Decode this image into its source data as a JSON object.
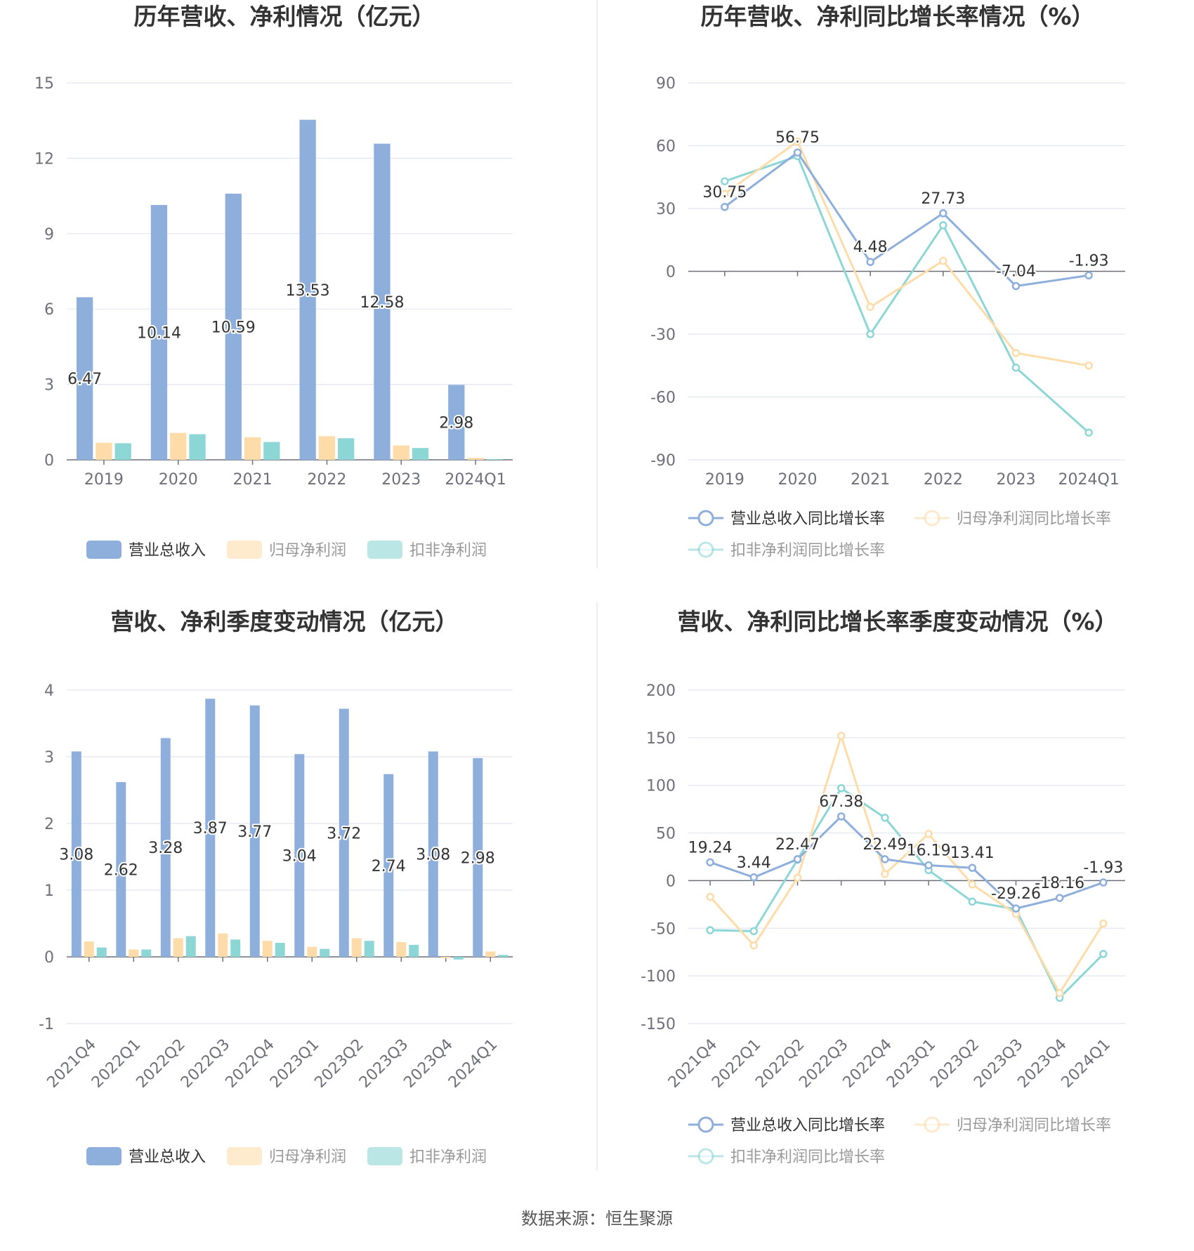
{
  "source_note": "数据来源：恒生聚源",
  "colors": {
    "revenue": "#8eaedb",
    "net_profit": "#fddcaa",
    "deducted_profit": "#8dd6d6",
    "axis": "#6e7079",
    "grid": "#e0e6f1",
    "divider": "#e8e8e8"
  },
  "chart_data": [
    {
      "id": "annual-amount",
      "type": "bar",
      "title": "历年营收、净利情况（亿元）",
      "categories": [
        "2019",
        "2020",
        "2021",
        "2022",
        "2023",
        "2024Q1"
      ],
      "series": [
        {
          "name": "营业总收入",
          "values": [
            6.47,
            10.14,
            10.59,
            13.53,
            12.58,
            2.98
          ],
          "labels": [
            "6.47",
            "10.14",
            "10.59",
            "13.53",
            "12.58",
            "2.98"
          ]
        },
        {
          "name": "归母净利润",
          "values": [
            0.68,
            1.07,
            0.9,
            0.94,
            0.57,
            0.08
          ]
        },
        {
          "name": "扣非净利润",
          "values": [
            0.66,
            1.02,
            0.71,
            0.86,
            0.47,
            0.03
          ]
        }
      ],
      "yticks": [
        "15",
        "12",
        "9",
        "6",
        "3",
        "0"
      ],
      "ylim": [
        0,
        15
      ],
      "xlabel": "",
      "ylabel": "",
      "grid": true,
      "legend": "bottom"
    },
    {
      "id": "annual-growth",
      "type": "line",
      "title": "历年营收、净利同比增长率情况（%）",
      "categories": [
        "2019",
        "2020",
        "2021",
        "2022",
        "2023",
        "2024Q1"
      ],
      "series": [
        {
          "name": "营业总收入同比增长率",
          "values": [
            30.75,
            56.75,
            4.48,
            27.73,
            -7.04,
            -1.93
          ],
          "labels": [
            "30.75",
            "56.75",
            "4.48",
            "27.73",
            "-7.04",
            "-1.93"
          ]
        },
        {
          "name": "归母净利润同比增长率",
          "values": [
            37,
            62,
            -17,
            5,
            -39,
            -45
          ]
        },
        {
          "name": "扣非净利润同比增长率",
          "values": [
            43,
            55,
            -30,
            22,
            -46,
            -77
          ]
        }
      ],
      "yticks": [
        "90",
        "60",
        "30",
        "0",
        "-30",
        "-60",
        "-90"
      ],
      "ylim": [
        -90,
        90
      ],
      "xlabel": "",
      "ylabel": "",
      "grid": true,
      "legend": "bottom"
    },
    {
      "id": "quarterly-amount",
      "type": "bar",
      "title": "营收、净利季度变动情况（亿元）",
      "categories": [
        "2021Q4",
        "2022Q1",
        "2022Q2",
        "2022Q3",
        "2022Q4",
        "2023Q1",
        "2023Q2",
        "2023Q3",
        "2023Q4",
        "2024Q1"
      ],
      "series": [
        {
          "name": "营业总收入",
          "values": [
            3.08,
            2.62,
            3.28,
            3.87,
            3.77,
            3.04,
            3.72,
            2.74,
            3.08,
            2.98
          ],
          "labels": [
            "3.08",
            "2.62",
            "3.28",
            "3.87",
            "3.77",
            "3.04",
            "3.72",
            "2.74",
            "3.08",
            "2.98"
          ]
        },
        {
          "name": "归母净利润",
          "values": [
            0.23,
            0.11,
            0.28,
            0.35,
            0.24,
            0.15,
            0.28,
            0.22,
            -0.02,
            0.08
          ]
        },
        {
          "name": "扣非净利润",
          "values": [
            0.14,
            0.11,
            0.31,
            0.26,
            0.21,
            0.12,
            0.24,
            0.18,
            -0.04,
            0.03
          ]
        }
      ],
      "yticks": [
        "4",
        "3",
        "2",
        "1",
        "0",
        "-1"
      ],
      "ylim": [
        -1,
        4
      ],
      "xlabel": "",
      "ylabel": "",
      "grid": true,
      "legend": "bottom"
    },
    {
      "id": "quarterly-growth",
      "type": "line",
      "title": "营收、净利同比增长率季度变动情况（%）",
      "categories": [
        "2021Q4",
        "2022Q1",
        "2022Q2",
        "2022Q3",
        "2022Q4",
        "2023Q1",
        "2023Q2",
        "2023Q3",
        "2023Q4",
        "2024Q1"
      ],
      "series": [
        {
          "name": "营业总收入同比增长率",
          "values": [
            19.24,
            3.44,
            22.47,
            67.38,
            22.49,
            16.19,
            13.41,
            -29.26,
            -18.16,
            -1.93
          ],
          "labels": [
            "19.24",
            "3.44",
            "22.47",
            "67.38",
            "22.49",
            "16.19",
            "13.41",
            "-29.26",
            "-18.16",
            "-1.93"
          ]
        },
        {
          "name": "归母净利润同比增长率",
          "values": [
            -17,
            -68,
            3,
            152,
            7,
            49,
            -4,
            -35,
            -118,
            -45
          ]
        },
        {
          "name": "扣非净利润同比增长率",
          "values": [
            -52,
            -53,
            22,
            97,
            66,
            11,
            -22,
            -30,
            -123,
            -77
          ]
        }
      ],
      "yticks": [
        "200",
        "150",
        "100",
        "50",
        "0",
        "-50",
        "-100",
        "-150"
      ],
      "ylim": [
        -150,
        200
      ],
      "xlabel": "",
      "ylabel": "",
      "grid": true,
      "legend": "bottom"
    }
  ]
}
